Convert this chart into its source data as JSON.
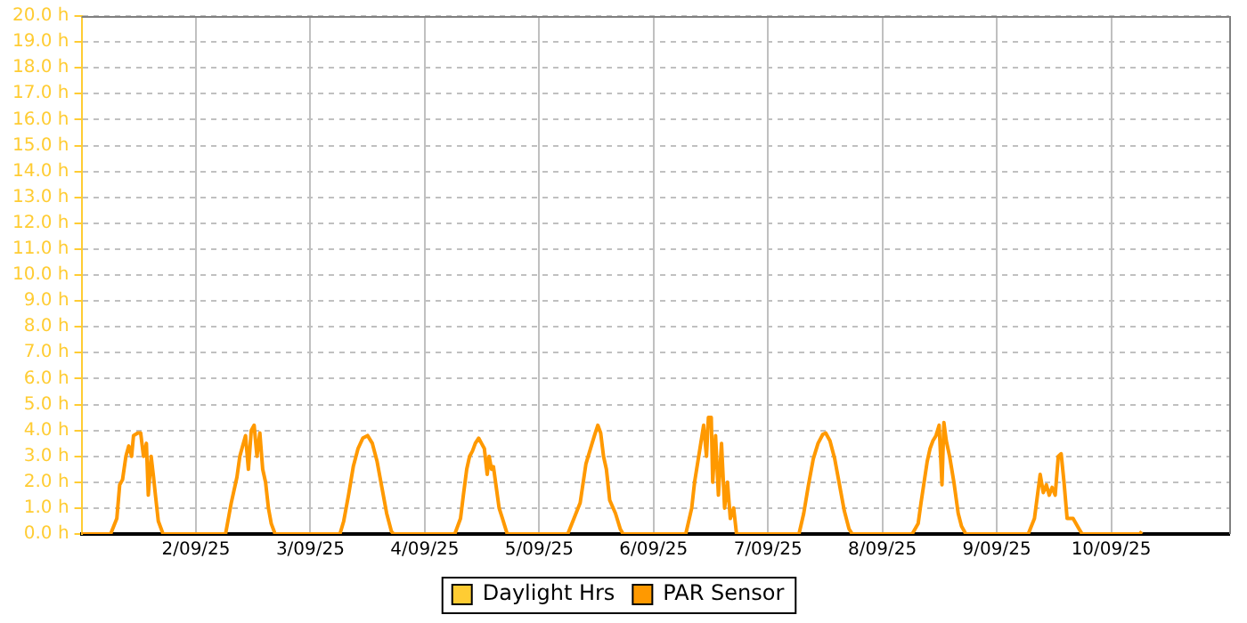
{
  "chart_data": {
    "type": "line",
    "xlim": [
      "--09-01",
      "--09-11T00:45"
    ],
    "xticks": [
      {
        "value": "--09-02",
        "label": "2/09/25"
      },
      {
        "value": "--09-03",
        "label": "3/09/25"
      },
      {
        "value": "--09-04",
        "label": "4/09/25"
      },
      {
        "value": "--09-05",
        "label": "5/09/25"
      },
      {
        "value": "--09-06",
        "label": "6/09/25"
      },
      {
        "value": "--09-07",
        "label": "7/09/25"
      },
      {
        "value": "--09-08",
        "label": "8/09/25"
      },
      {
        "value": "--09-09",
        "label": "9/09/25"
      },
      {
        "value": "--09-10",
        "label": "10/09/25"
      }
    ],
    "ylim": [
      0,
      20
    ],
    "yticks": [
      {
        "value": 0,
        "label": "0.0 h"
      },
      {
        "value": 1,
        "label": "1.0 h"
      },
      {
        "value": 2,
        "label": "2.0 h"
      },
      {
        "value": 3,
        "label": "3.0 h"
      },
      {
        "value": 4,
        "label": "4.0 h"
      },
      {
        "value": 5,
        "label": "5.0 h"
      },
      {
        "value": 6,
        "label": "6.0 h"
      },
      {
        "value": 7,
        "label": "7.0 h"
      },
      {
        "value": 8,
        "label": "8.0 h"
      },
      {
        "value": 9,
        "label": "9.0 h"
      },
      {
        "value": 10,
        "label": "10.0 h"
      },
      {
        "value": 11,
        "label": "11.0 h"
      },
      {
        "value": 12,
        "label": "12.0 h"
      },
      {
        "value": 13,
        "label": "13.0 h"
      },
      {
        "value": 14,
        "label": "14.0 h"
      },
      {
        "value": 15,
        "label": "15.0 h"
      },
      {
        "value": 16,
        "label": "16.0 h"
      },
      {
        "value": 17,
        "label": "17.0 h"
      },
      {
        "value": 18,
        "label": "18.0 h"
      },
      {
        "value": 19,
        "label": "19.0 h"
      },
      {
        "value": 20,
        "label": "20.0 h"
      }
    ],
    "grid": true,
    "legend": "bottom",
    "marker": "none",
    "line_style": "solid",
    "series": [
      {
        "name": "Daylight Hrs",
        "color": "#ffcc33"
      },
      {
        "name": "PAR Sensor",
        "color": "#ff9900",
        "x": [
          "--09-01T00:00",
          "--09-01T06:06",
          "--09-01T07:24",
          "--09-01T08:00",
          "--09-01T08:36",
          "--09-01T09:18",
          "--09-01T09:54",
          "--09-01T10:30",
          "--09-01T10:54",
          "--09-01T11:48",
          "--09-01T12:24",
          "--09-01T13:00",
          "--09-01T13:36",
          "--09-01T14:00",
          "--09-01T14:36",
          "--09-01T15:06",
          "--09-01T15:30",
          "--09-01T16:06",
          "--09-01T17:06",
          "--09-02T06:12",
          "--09-02T07:24",
          "--09-02T08:36",
          "--09-02T09:12",
          "--09-02T09:48",
          "--09-02T10:24",
          "--09-02T11:00",
          "--09-02T11:36",
          "--09-02T12:12",
          "--09-02T12:48",
          "--09-02T13:24",
          "--09-02T14:00",
          "--09-02T14:36",
          "--09-02T15:12",
          "--09-02T15:48",
          "--09-02T16:36",
          "--09-03T06:12",
          "--09-03T07:00",
          "--09-03T08:00",
          "--09-03T09:00",
          "--09-03T10:00",
          "--09-03T11:00",
          "--09-03T12:00",
          "--09-03T13:00",
          "--09-03T14:00",
          "--09-03T15:00",
          "--09-03T16:00",
          "--09-03T17:00",
          "--09-03T17:30",
          "--09-04T06:18",
          "--09-04T07:30",
          "--09-04T08:06",
          "--09-04T08:48",
          "--09-04T09:24",
          "--09-04T10:00",
          "--09-04T10:36",
          "--09-04T11:18",
          "--09-04T11:54",
          "--09-04T12:30",
          "--09-04T13:06",
          "--09-04T13:30",
          "--09-04T14:00",
          "--09-04T14:24",
          "--09-04T15:00",
          "--09-04T15:36",
          "--09-04T16:18",
          "--09-04T17:18",
          "--09-05T06:00",
          "--09-05T08:36",
          "--09-05T09:48",
          "--09-05T11:06",
          "--09-05T11:36",
          "--09-05T12:18",
          "--09-05T12:54",
          "--09-05T13:30",
          "--09-05T14:06",
          "--09-05T14:48",
          "--09-05T16:00",
          "--09-05T17:00",
          "--09-05T17:36",
          "--09-06T06:45",
          "--09-06T08:00",
          "--09-06T08:36",
          "--09-06T09:54",
          "--09-06T10:30",
          "--09-06T11:06",
          "--09-06T11:30",
          "--09-06T12:06",
          "--09-06T12:24",
          "--09-06T13:00",
          "--09-06T13:36",
          "--09-06T14:15",
          "--09-06T14:54",
          "--09-06T15:30",
          "--09-06T16:06",
          "--09-06T16:48",
          "--09-06T17:24",
          "--09-07T06:30",
          "--09-07T07:30",
          "--09-07T08:30",
          "--09-07T09:30",
          "--09-07T10:30",
          "--09-07T11:30",
          "--09-07T12:06",
          "--09-07T13:00",
          "--09-07T14:00",
          "--09-07T15:00",
          "--09-07T16:00",
          "--09-07T17:00",
          "--09-07T17:40",
          "--09-08T06:15",
          "--09-08T07:30",
          "--09-08T08:06",
          "--09-08T09:24",
          "--09-08T10:00",
          "--09-08T10:36",
          "--09-08T11:15",
          "--09-08T11:54",
          "--09-08T12:30",
          "--09-08T12:54",
          "--09-08T13:24",
          "--09-08T14:06",
          "--09-08T15:00",
          "--09-08T15:54",
          "--09-08T16:36",
          "--09-08T17:30",
          "--09-09T06:36",
          "--09-09T07:54",
          "--09-09T09:06",
          "--09-09T09:45",
          "--09-09T10:24",
          "--09-09T11:00",
          "--09-09T11:36",
          "--09-09T12:15",
          "--09-09T12:54",
          "--09-09T13:30",
          "--09-09T14:06",
          "--09-09T14:45",
          "--09-09T16:00",
          "--09-09T17:15",
          "--09-09T17:54",
          "--09-10T06:00",
          "--09-10T06:24"
        ],
        "values": [
          0,
          0,
          0.6,
          1.9,
          2.1,
          3.0,
          3.4,
          3.0,
          3.8,
          3.9,
          3.9,
          3.0,
          3.5,
          1.5,
          3.0,
          2.2,
          1.5,
          0.5,
          0,
          0,
          1.2,
          2.2,
          3.0,
          3.4,
          3.8,
          2.5,
          4.0,
          4.2,
          3.0,
          3.9,
          2.5,
          2.0,
          1.0,
          0.4,
          0,
          0,
          0.5,
          1.5,
          2.6,
          3.3,
          3.7,
          3.8,
          3.5,
          2.8,
          1.8,
          0.8,
          0.1,
          0,
          0,
          0.6,
          1.5,
          2.5,
          3.0,
          3.2,
          3.5,
          3.7,
          3.5,
          3.3,
          2.3,
          3.0,
          2.5,
          2.6,
          1.8,
          1.0,
          0.6,
          0,
          0,
          1.2,
          2.7,
          3.5,
          3.8,
          4.2,
          3.9,
          3.0,
          2.5,
          1.3,
          0.8,
          0.2,
          0,
          0,
          1.0,
          2.0,
          3.5,
          4.2,
          3.0,
          4.5,
          4.5,
          2.0,
          3.8,
          1.5,
          3.5,
          1.0,
          2.0,
          0.6,
          1.0,
          0,
          0,
          0.8,
          1.9,
          2.9,
          3.5,
          3.85,
          3.9,
          3.6,
          2.9,
          1.9,
          0.9,
          0.2,
          0,
          0,
          0.4,
          1.2,
          2.8,
          3.3,
          3.6,
          3.8,
          4.2,
          1.9,
          4.3,
          3.6,
          3.0,
          2.0,
          0.8,
          0.3,
          0,
          0,
          0.6,
          2.3,
          1.6,
          1.9,
          1.5,
          1.8,
          1.5,
          3.0,
          3.1,
          2.0,
          0.6,
          0.6,
          0.2,
          0,
          0,
          0.1
        ]
      }
    ]
  }
}
